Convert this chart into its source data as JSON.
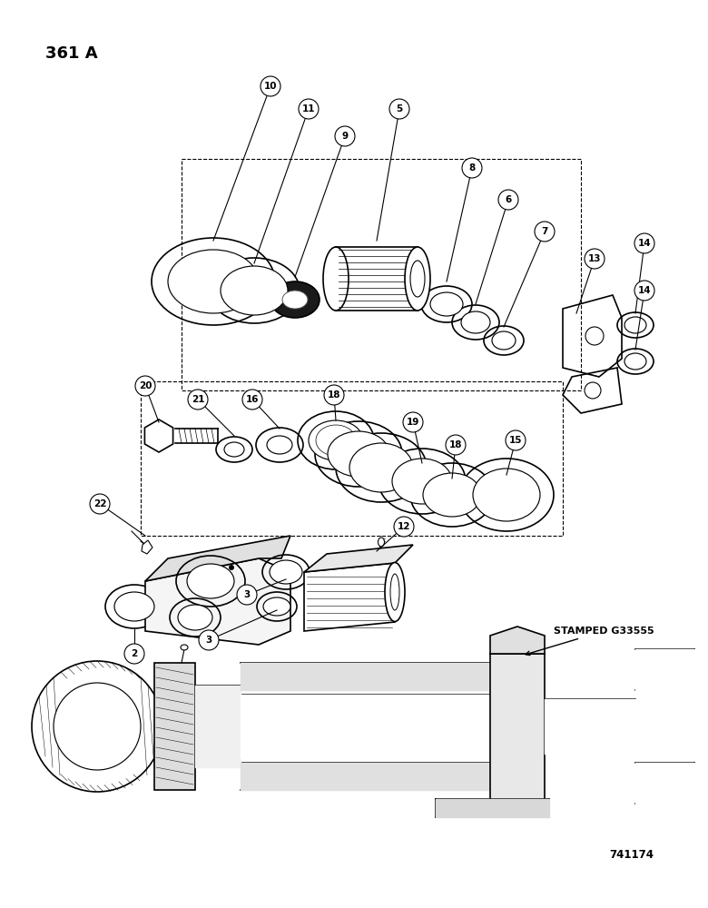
{
  "title_label": "361 A",
  "part_number": "741174",
  "stamped_label": "STAMPED G33555",
  "bg_color": "#ffffff",
  "line_color": "#000000",
  "fig_width": 7.8,
  "fig_height": 10.0,
  "dpi": 100
}
